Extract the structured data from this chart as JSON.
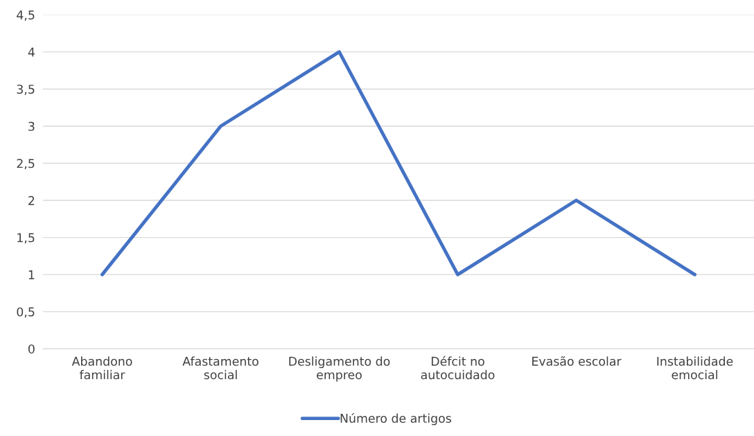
{
  "chart_data": {
    "type": "line",
    "categories": [
      "Abandono\nfamiliar",
      "Afastamento\nsocial",
      "Desligamento do\nempreo",
      "Défcit no\nautocuidado",
      "Evasão escolar",
      "Instabilidade\nemocial"
    ],
    "series": [
      {
        "name": "Número de artigos",
        "color": "#4472c4",
        "values": [
          1,
          3,
          4,
          1,
          2,
          1
        ]
      }
    ],
    "ylim": [
      0,
      4.5
    ],
    "yticks": [
      0,
      {
        "value": 0.5,
        "label": "0,5"
      },
      1,
      {
        "value": 1.5,
        "label": "1,5"
      },
      2,
      {
        "value": 2.5,
        "label": "2,5"
      },
      3,
      {
        "value": 3.5,
        "label": "3,5"
      },
      4,
      {
        "value": 4.5,
        "label": "4,5"
      }
    ],
    "grid": "y",
    "legend": "bottom",
    "marker": "none",
    "line_style": "solid"
  }
}
